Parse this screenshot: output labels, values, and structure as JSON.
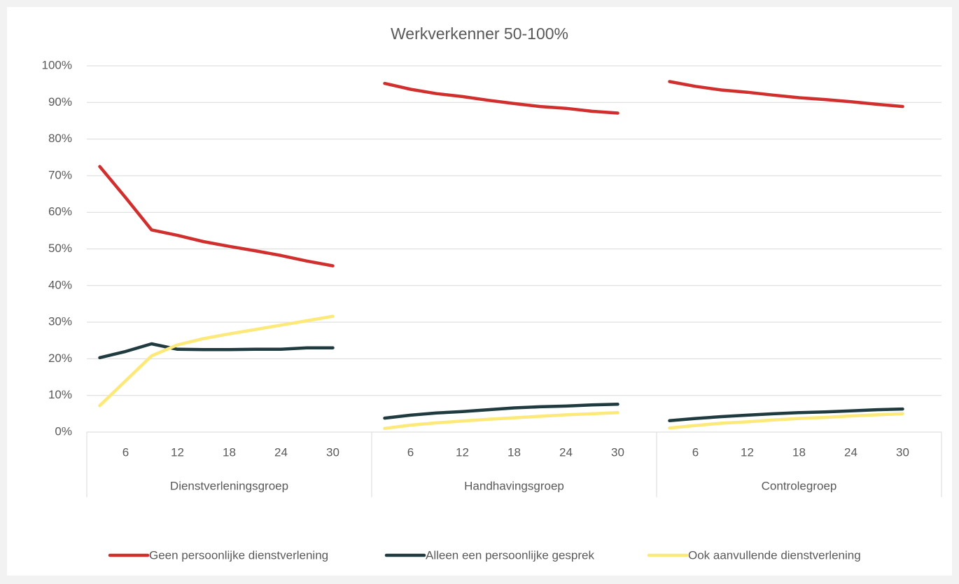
{
  "chart_data": {
    "type": "line",
    "title": "Werkverkenner 50-100%",
    "groups": [
      {
        "name": "Dienstverleningsgroep",
        "categories": [
          null,
          "6",
          null,
          "12",
          null,
          "18",
          null,
          "24",
          null,
          "30",
          null
        ]
      },
      {
        "name": "Handhavingsgroep",
        "categories": [
          null,
          "6",
          null,
          "12",
          null,
          "18",
          null,
          "24",
          null,
          "30",
          null
        ]
      },
      {
        "name": "Controlegroep",
        "categories": [
          null,
          "6",
          null,
          "12",
          null,
          "18",
          null,
          "24",
          null,
          "30",
          null
        ]
      }
    ],
    "series": [
      {
        "name": "Geen persoonlijke dienstverlening",
        "color": "#d12e2e",
        "values": [
          72.5,
          64,
          55.2,
          53.7,
          52,
          50.7,
          49.5,
          48.2,
          46.7,
          45.4,
          null,
          95.2,
          93.6,
          92.4,
          91.6,
          90.6,
          89.7,
          88.9,
          88.4,
          87.6,
          87.1,
          null,
          95.7,
          94.4,
          93.4,
          92.8,
          92,
          91.3,
          90.8,
          90.2,
          89.5,
          88.9,
          null
        ]
      },
      {
        "name": "Alleen een persoonlijke gesprek",
        "color": "#1f3b40",
        "values": [
          20.3,
          22,
          24.1,
          22.6,
          22.5,
          22.5,
          22.6,
          22.6,
          23,
          23,
          null,
          3.8,
          4.6,
          5.2,
          5.6,
          6.1,
          6.6,
          6.9,
          7.1,
          7.4,
          7.6,
          null,
          3.1,
          3.7,
          4.2,
          4.6,
          5,
          5.3,
          5.5,
          5.8,
          6.1,
          6.3,
          null
        ]
      },
      {
        "name": "Ook aanvullende dienstverlening",
        "color": "#fce97a",
        "values": [
          7.2,
          14,
          20.8,
          23.8,
          25.5,
          26.8,
          28,
          29.2,
          30.4,
          31.6,
          null,
          1,
          1.9,
          2.5,
          3,
          3.5,
          3.9,
          4.3,
          4.7,
          5,
          5.3,
          null,
          1.1,
          1.8,
          2.4,
          2.8,
          3.3,
          3.7,
          4,
          4.4,
          4.7,
          5,
          null
        ]
      }
    ],
    "ylim": [
      0,
      100
    ],
    "yticks": [
      {
        "value": 0,
        "label": "0%"
      },
      {
        "value": 10,
        "label": "10%"
      },
      {
        "value": 20,
        "label": "20%"
      },
      {
        "value": 30,
        "label": "30%"
      },
      {
        "value": 40,
        "label": "40%"
      },
      {
        "value": 50,
        "label": "50%"
      },
      {
        "value": 60,
        "label": "60%"
      },
      {
        "value": 70,
        "label": "70%"
      },
      {
        "value": 80,
        "label": "80%"
      },
      {
        "value": 90,
        "label": "90%"
      },
      {
        "value": 100,
        "label": "100%"
      }
    ],
    "grid": true,
    "legend": "bottom"
  }
}
